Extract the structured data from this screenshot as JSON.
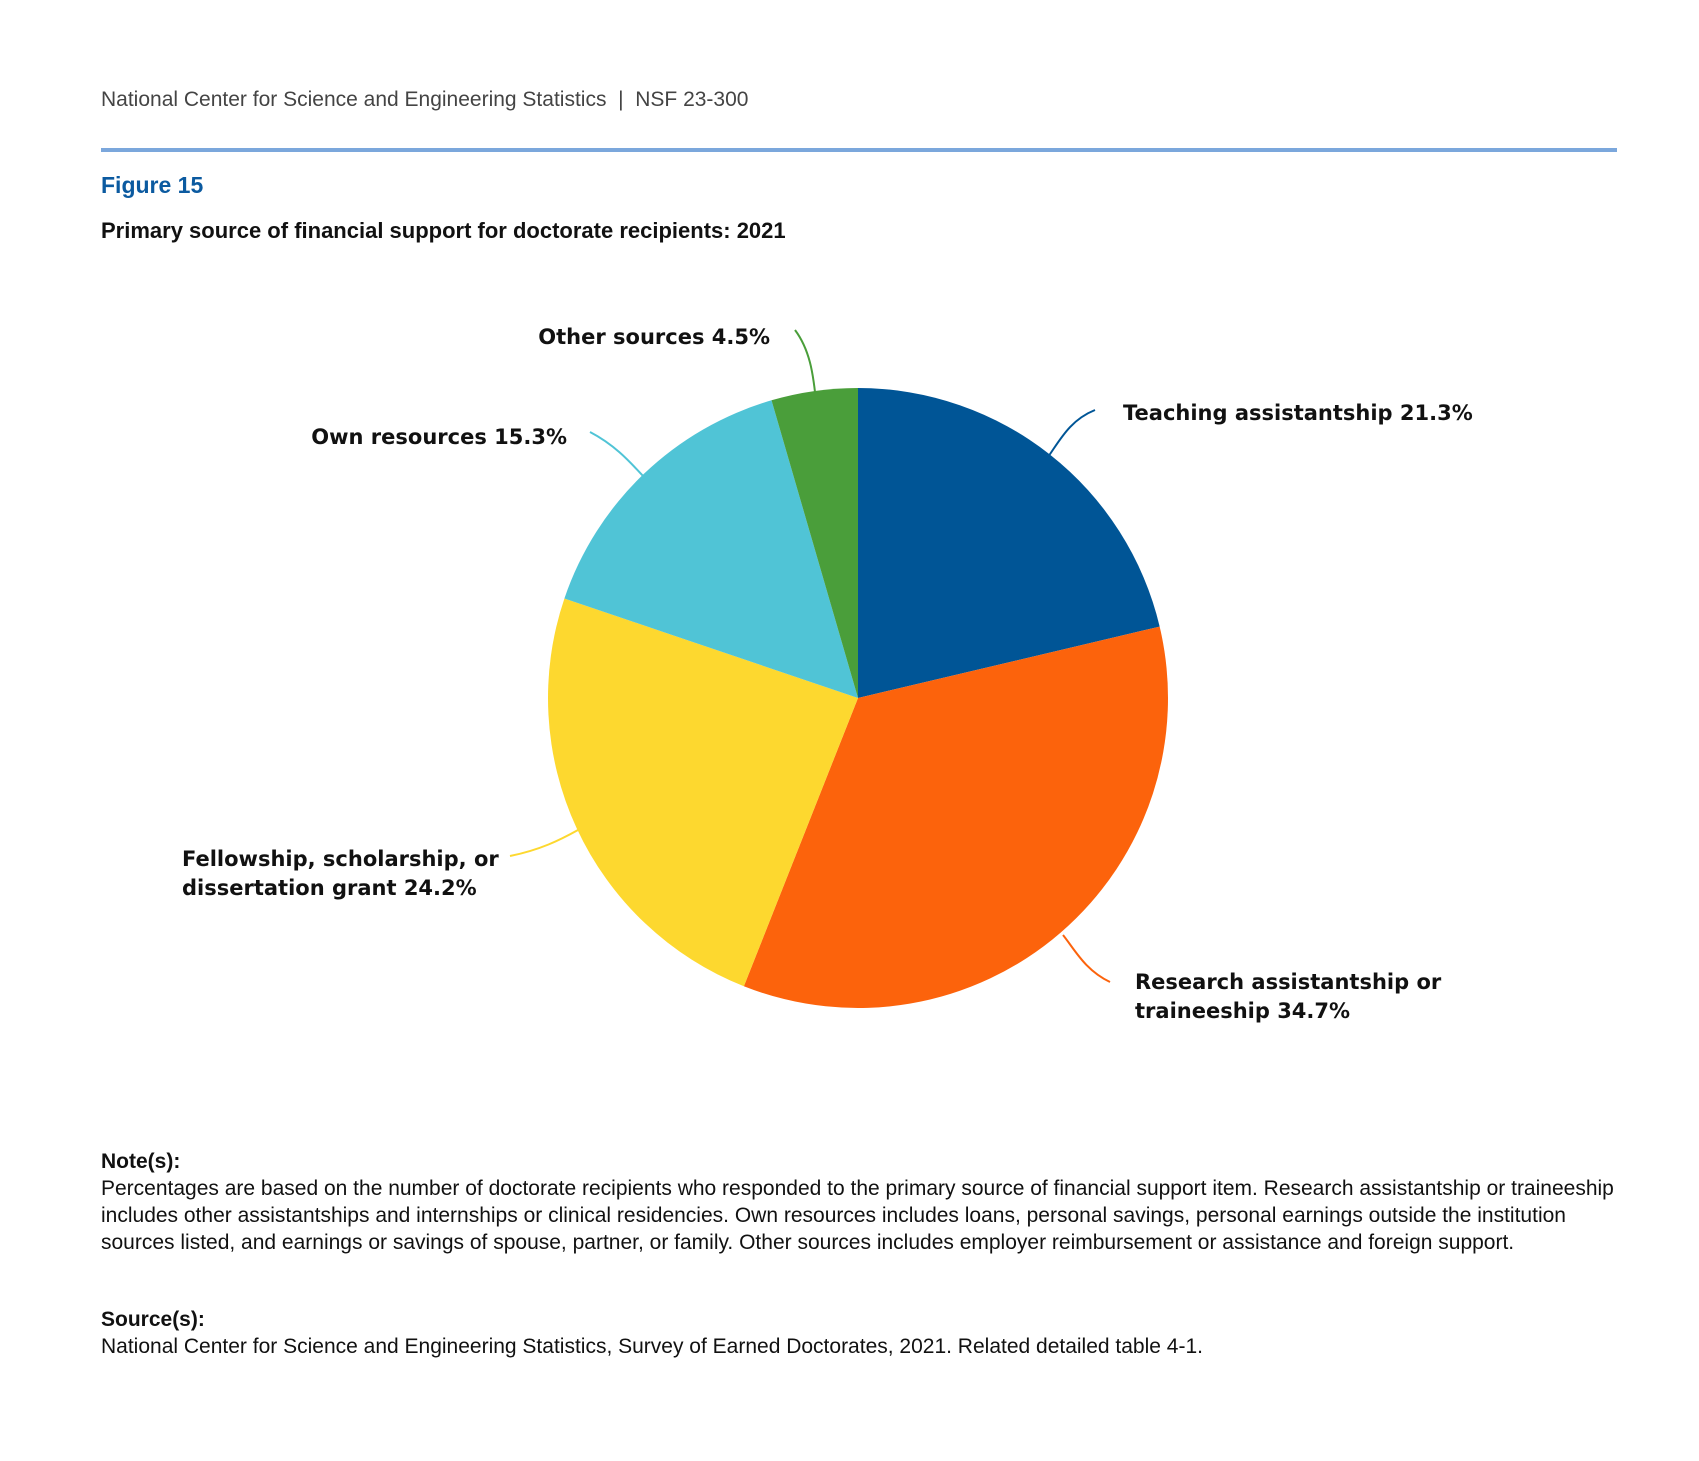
{
  "header": {
    "publisher": "National Center for Science and Engineering Statistics  |  NSF 23-300"
  },
  "figure": {
    "number": "Figure 15",
    "title": "Primary source of financial support for doctorate recipients: 2021"
  },
  "chart_data": {
    "type": "pie",
    "start_angle": "12 o'clock",
    "direction": "clockwise",
    "slices": [
      {
        "label": "Teaching assistantship 21.3%",
        "lines": [
          "Teaching assistantship 21.3%"
        ],
        "value": 21.3,
        "color": "#005596"
      },
      {
        "label": "Research assistantship or traineeship 34.7%",
        "lines": [
          "Research assistantship or",
          "traineeship 34.7%"
        ],
        "value": 34.7,
        "color": "#FC630C"
      },
      {
        "label": "Fellowship, scholarship, or dissertation grant 24.2%",
        "lines": [
          "Fellowship, scholarship, or",
          "dissertation grant 24.2%"
        ],
        "value": 24.2,
        "color": "#FDD82F"
      },
      {
        "label": "Own resources 15.3%",
        "lines": [
          "Own resources 15.3%"
        ],
        "value": 15.3,
        "color": "#50C4D6"
      },
      {
        "label": "Other sources 4.5%",
        "lines": [
          "Other sources 4.5%"
        ],
        "value": 4.5,
        "color": "#4A9E3A"
      }
    ]
  },
  "notes": {
    "heading": "Note(s):",
    "text": "Percentages are based on the number of doctorate recipients who responded to the primary source of financial support item. Research assistantship or traineeship includes other assistantships and internships or clinical residencies. Own resources includes loans, personal savings, personal earnings outside the institution sources listed, and earnings or savings of spouse, partner, or family. Other sources includes employer reimbursement or assistance and foreign support."
  },
  "source": {
    "heading": "Source(s):",
    "text": "National Center for Science and Engineering Statistics, Survey of Earned Doctorates, 2021. Related detailed table 4-1."
  }
}
